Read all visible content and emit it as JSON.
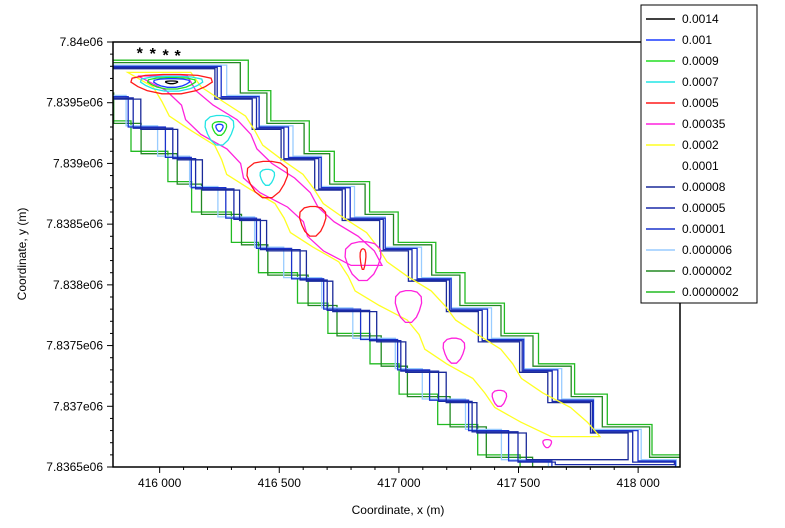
{
  "chart_data": {
    "type": "contour",
    "title": "",
    "xlabel": "Coordinate, x (m)",
    "ylabel": "Coordinate, y (m)",
    "xlim": [
      415805,
      418175
    ],
    "ylim": [
      7836500,
      7840000
    ],
    "xticks": [
      416000,
      416500,
      417000,
      417500,
      418000
    ],
    "xtick_labels": [
      "416 000",
      "416 500",
      "417 000",
      "417 500",
      "418 000"
    ],
    "yticks": [
      7840000,
      7839500,
      7839000,
      7838500,
      7838000,
      7837500,
      7837000,
      7836500
    ],
    "ytick_labels": [
      "7.84e06",
      "7.8395e06",
      "7.839e06",
      "7.8385e06",
      "7.838e06",
      "7.8375e06",
      "7.837e06",
      "7.8365e06"
    ],
    "legend_position": "outside-top-right",
    "levels": [
      {
        "label": "0.0014",
        "color": "#000000"
      },
      {
        "label": "0.001",
        "color": "#1a3cff"
      },
      {
        "label": "0.0009",
        "color": "#22dd22"
      },
      {
        "label": "0.0007",
        "color": "#22e5e5"
      },
      {
        "label": "0.0005",
        "color": "#ff1a1a"
      },
      {
        "label": "0.00035",
        "color": "#ff22dd"
      },
      {
        "label": "0.0002",
        "color": "#ffff22"
      },
      {
        "label": "0.0001",
        "color": "#ffffff"
      },
      {
        "label": "0.00008",
        "color": "#1a2a99"
      },
      {
        "label": "0.00005",
        "color": "#1a2aa8"
      },
      {
        "label": "0.00001",
        "color": "#1a33cc"
      },
      {
        "label": "0.000006",
        "color": "#99ccff"
      },
      {
        "label": "0.000002",
        "color": "#228822"
      },
      {
        "label": "0.0000002",
        "color": "#22bb22"
      }
    ],
    "band": {
      "centerline": [
        [
          415970,
          7839800
        ],
        [
          416200,
          7839400
        ],
        [
          416450,
          7838900
        ],
        [
          416700,
          7838450
        ],
        [
          416950,
          7838000
        ],
        [
          417200,
          7837600
        ],
        [
          417450,
          7837150
        ],
        [
          417700,
          7836800
        ],
        [
          417900,
          7836500
        ]
      ],
      "band_levels": [
        {
          "level": "0.0000002",
          "half_width": 330,
          "top": 7839850,
          "bottom": 7836500
        },
        {
          "level": "0.000002",
          "half_width": 300,
          "top": 7839830,
          "bottom": 7836500
        },
        {
          "level": "0.000006",
          "half_width": 250,
          "top": 7839810,
          "bottom": 7836500
        },
        {
          "level": "0.00001",
          "half_width": 235,
          "top": 7839800,
          "bottom": 7836500
        },
        {
          "level": "0.00005",
          "half_width": 215,
          "top": 7839790,
          "bottom": 7836520
        },
        {
          "level": "0.00008",
          "half_width": 195,
          "top": 7839780,
          "bottom": 7836560
        },
        {
          "level": "0.0002",
          "half_width": 130,
          "top": 7839750,
          "bottom": 7836700
        },
        {
          "level": "0.00035",
          "half_width": 85,
          "top": 7839720,
          "bottom": 7838150
        }
      ]
    },
    "peaks": [
      {
        "x": 416050,
        "y": 7839670,
        "rings": [
          [
            "0.0005",
            170,
            85
          ],
          [
            "0.0007",
            130,
            65
          ],
          [
            "0.0009",
            100,
            50
          ],
          [
            "0.001",
            75,
            38
          ],
          [
            "0.0014",
            25,
            12
          ]
        ]
      },
      {
        "x": 416250,
        "y": 7839300,
        "rings": [
          [
            "0.0007",
            60,
            130
          ],
          [
            "0.0009",
            30,
            60
          ],
          [
            "0.001",
            15,
            30
          ]
        ]
      },
      {
        "x": 416450,
        "y": 7838900,
        "rings": [
          [
            "0.0005",
            85,
            160
          ],
          [
            "0.0007",
            30,
            70
          ]
        ]
      },
      {
        "x": 416640,
        "y": 7838550,
        "rings": [
          [
            "0.0005",
            55,
            130
          ]
        ]
      },
      {
        "x": 416850,
        "y": 7838230,
        "rings": [
          [
            "0.00035",
            75,
            170
          ],
          [
            "0.0005",
            12,
            90
          ]
        ]
      },
      {
        "x": 417040,
        "y": 7837850,
        "rings": [
          [
            "0.00035",
            55,
            140
          ]
        ]
      },
      {
        "x": 417230,
        "y": 7837480,
        "rings": [
          [
            "0.00035",
            45,
            110
          ]
        ]
      },
      {
        "x": 417420,
        "y": 7837080,
        "rings": [
          [
            "0.00035",
            30,
            70
          ]
        ]
      },
      {
        "x": 417620,
        "y": 7836700,
        "rings": [
          [
            "0.00035",
            18,
            35
          ]
        ]
      }
    ],
    "sources": [
      [
        415917,
        7839930
      ],
      [
        415971,
        7839925
      ],
      [
        416025,
        7839915
      ],
      [
        416075,
        7839910
      ]
    ]
  }
}
